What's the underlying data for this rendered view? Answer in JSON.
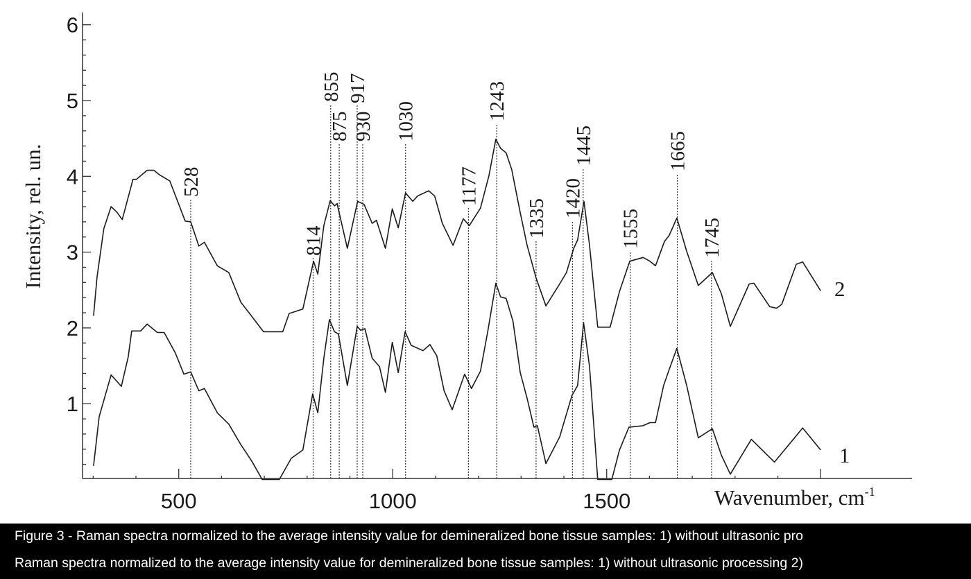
{
  "chart_data": {
    "type": "line",
    "xlabel": "Wavenumber, cm",
    "xlabel_sup": "-1",
    "ylabel": "Intensity, rel. un.",
    "xlim": [
      300,
      2210
    ],
    "ylim": [
      0,
      6.1
    ],
    "xticks": [
      500,
      1000,
      1500
    ],
    "yticks": [
      1,
      2,
      3,
      4,
      5,
      6
    ],
    "grid": false,
    "line_color": "#1a1a1a",
    "series": [
      {
        "name": "1",
        "points": [
          [
            301,
            0.18
          ],
          [
            314,
            0.83
          ],
          [
            342,
            1.38
          ],
          [
            366,
            1.23
          ],
          [
            382,
            1.62
          ],
          [
            390,
            1.96
          ],
          [
            411,
            1.96
          ],
          [
            426,
            2.05
          ],
          [
            450,
            1.94
          ],
          [
            466,
            1.94
          ],
          [
            492,
            1.67
          ],
          [
            512,
            1.39
          ],
          [
            528,
            1.42
          ],
          [
            547,
            1.17
          ],
          [
            560,
            1.2
          ],
          [
            590,
            0.88
          ],
          [
            617,
            0.73
          ],
          [
            645,
            0.46
          ],
          [
            671,
            0.24
          ],
          [
            695,
            0.0
          ],
          [
            735,
            0.0
          ],
          [
            763,
            0.28
          ],
          [
            790,
            0.39
          ],
          [
            813,
            1.13
          ],
          [
            825,
            0.88
          ],
          [
            839,
            1.6
          ],
          [
            852,
            2.11
          ],
          [
            864,
            1.95
          ],
          [
            873,
            1.92
          ],
          [
            894,
            1.24
          ],
          [
            917,
            2.02
          ],
          [
            925,
            1.97
          ],
          [
            935,
            1.99
          ],
          [
            952,
            1.6
          ],
          [
            969,
            1.49
          ],
          [
            983,
            1.15
          ],
          [
            999,
            1.81
          ],
          [
            1013,
            1.41
          ],
          [
            1029,
            1.95
          ],
          [
            1043,
            1.77
          ],
          [
            1071,
            1.7
          ],
          [
            1087,
            1.78
          ],
          [
            1103,
            1.63
          ],
          [
            1120,
            1.17
          ],
          [
            1139,
            0.92
          ],
          [
            1168,
            1.39
          ],
          [
            1184,
            1.2
          ],
          [
            1205,
            1.43
          ],
          [
            1222,
            1.95
          ],
          [
            1241,
            2.59
          ],
          [
            1252,
            2.41
          ],
          [
            1265,
            2.39
          ],
          [
            1281,
            2.09
          ],
          [
            1298,
            1.41
          ],
          [
            1314,
            1.07
          ],
          [
            1330,
            0.69
          ],
          [
            1338,
            0.71
          ],
          [
            1358,
            0.21
          ],
          [
            1390,
            0.56
          ],
          [
            1419,
            1.11
          ],
          [
            1432,
            1.24
          ],
          [
            1446,
            2.07
          ],
          [
            1460,
            1.49
          ],
          [
            1479,
            0.0
          ],
          [
            1512,
            0.0
          ],
          [
            1530,
            0.39
          ],
          [
            1552,
            0.69
          ],
          [
            1585,
            0.71
          ],
          [
            1601,
            0.75
          ],
          [
            1614,
            0.75
          ],
          [
            1633,
            1.24
          ],
          [
            1646,
            1.45
          ],
          [
            1664,
            1.73
          ],
          [
            1687,
            1.24
          ],
          [
            1714,
            0.55
          ],
          [
            1747,
            0.67
          ],
          [
            1768,
            0.32
          ],
          [
            1789,
            0.07
          ],
          [
            1838,
            0.53
          ],
          [
            1892,
            0.23
          ],
          [
            1958,
            0.68
          ],
          [
            2000,
            0.39
          ]
        ]
      },
      {
        "name": "2",
        "points": [
          [
            301,
            2.16
          ],
          [
            309,
            2.67
          ],
          [
            325,
            3.31
          ],
          [
            342,
            3.6
          ],
          [
            355,
            3.53
          ],
          [
            368,
            3.43
          ],
          [
            393,
            3.96
          ],
          [
            401,
            3.96
          ],
          [
            426,
            4.08
          ],
          [
            442,
            4.08
          ],
          [
            455,
            4.02
          ],
          [
            479,
            3.94
          ],
          [
            515,
            3.41
          ],
          [
            528,
            3.4
          ],
          [
            547,
            3.08
          ],
          [
            560,
            3.13
          ],
          [
            590,
            2.82
          ],
          [
            617,
            2.73
          ],
          [
            645,
            2.34
          ],
          [
            671,
            2.15
          ],
          [
            698,
            1.95
          ],
          [
            743,
            1.95
          ],
          [
            758,
            2.19
          ],
          [
            790,
            2.25
          ],
          [
            815,
            2.88
          ],
          [
            825,
            2.71
          ],
          [
            839,
            3.35
          ],
          [
            854,
            3.68
          ],
          [
            864,
            3.61
          ],
          [
            870,
            3.64
          ],
          [
            894,
            3.05
          ],
          [
            918,
            3.67
          ],
          [
            933,
            3.63
          ],
          [
            952,
            3.38
          ],
          [
            962,
            3.42
          ],
          [
            983,
            3.05
          ],
          [
            999,
            3.57
          ],
          [
            1013,
            3.32
          ],
          [
            1030,
            3.78
          ],
          [
            1047,
            3.67
          ],
          [
            1058,
            3.74
          ],
          [
            1084,
            3.81
          ],
          [
            1098,
            3.74
          ],
          [
            1116,
            3.38
          ],
          [
            1141,
            3.09
          ],
          [
            1165,
            3.44
          ],
          [
            1179,
            3.35
          ],
          [
            1205,
            3.58
          ],
          [
            1225,
            4.01
          ],
          [
            1241,
            4.49
          ],
          [
            1252,
            4.37
          ],
          [
            1265,
            4.31
          ],
          [
            1278,
            4.09
          ],
          [
            1298,
            3.52
          ],
          [
            1314,
            3.09
          ],
          [
            1335,
            2.66
          ],
          [
            1358,
            2.29
          ],
          [
            1390,
            2.58
          ],
          [
            1406,
            2.73
          ],
          [
            1423,
            3.05
          ],
          [
            1432,
            3.16
          ],
          [
            1447,
            3.67
          ],
          [
            1460,
            3.09
          ],
          [
            1479,
            2.01
          ],
          [
            1508,
            2.01
          ],
          [
            1530,
            2.48
          ],
          [
            1554,
            2.88
          ],
          [
            1585,
            2.93
          ],
          [
            1601,
            2.88
          ],
          [
            1614,
            2.82
          ],
          [
            1635,
            3.14
          ],
          [
            1646,
            3.22
          ],
          [
            1664,
            3.45
          ],
          [
            1687,
            3.01
          ],
          [
            1714,
            2.56
          ],
          [
            1747,
            2.73
          ],
          [
            1768,
            2.45
          ],
          [
            1789,
            2.02
          ],
          [
            1833,
            2.58
          ],
          [
            1844,
            2.59
          ],
          [
            1881,
            2.28
          ],
          [
            1897,
            2.26
          ],
          [
            1909,
            2.31
          ],
          [
            1943,
            2.84
          ],
          [
            1958,
            2.87
          ],
          [
            1979,
            2.68
          ],
          [
            2000,
            2.49
          ]
        ]
      }
    ],
    "peak_markers": [
      "528",
      "814",
      "855",
      "875",
      "917",
      "930",
      "1030",
      "1177",
      "1243",
      "1335",
      "1420",
      "1445",
      "1555",
      "1665",
      "1745"
    ]
  },
  "caption": {
    "line1": "Figure 3 - Raman spectra normalized to the average intensity value for demineralized bone tissue samples: 1) without ultrasonic pro",
    "line2": "Raman spectra normalized to the average intensity value for demineralized bone tissue samples: 1) without ultrasonic processing 2)"
  }
}
